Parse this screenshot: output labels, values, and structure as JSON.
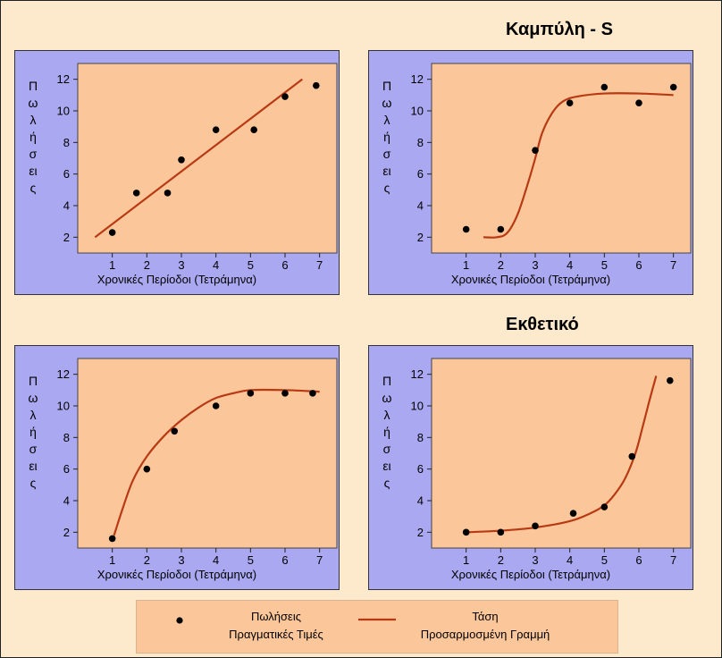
{
  "headings": {
    "s_curve": "Καμπύλη - S",
    "exponential": "Εκθετικό"
  },
  "colors": {
    "panel_bg": "#aaa8f0",
    "plot_bg": "#fbc79a",
    "trend_line": "#b83a14",
    "points": "#000000",
    "page_bg": "#fde9cc"
  },
  "chart_data": [
    {
      "type": "scatter",
      "xlabel": "Χρονικές Περίοδοι (Τετράμηνα)",
      "ylabel": "Πωλήσεις",
      "xticks": [
        1,
        2,
        3,
        4,
        5,
        6,
        7
      ],
      "yticks": [
        2,
        4,
        6,
        8,
        10,
        12
      ],
      "xlim": [
        0,
        7.5
      ],
      "ylim": [
        1,
        13
      ],
      "points": [
        [
          1.0,
          2.3
        ],
        [
          1.7,
          4.8
        ],
        [
          2.6,
          4.8
        ],
        [
          3.0,
          6.9
        ],
        [
          4.0,
          8.8
        ],
        [
          5.1,
          8.8
        ],
        [
          6.0,
          10.9
        ],
        [
          6.9,
          11.6
        ]
      ],
      "trend": [
        [
          0.5,
          2.0
        ],
        [
          6.5,
          12.0
        ]
      ],
      "trend_style": "linear"
    },
    {
      "type": "scatter",
      "xlabel": "Χρονικές Περίοδοι (Τετράμηνα)",
      "ylabel": "Πωλήσεις",
      "xticks": [
        1,
        2,
        3,
        4,
        5,
        6,
        7
      ],
      "yticks": [
        2,
        4,
        6,
        8,
        10,
        12
      ],
      "xlim": [
        0,
        7.5
      ],
      "ylim": [
        1,
        13
      ],
      "points": [
        [
          1.0,
          2.5
        ],
        [
          2.0,
          2.5
        ],
        [
          3.0,
          7.5
        ],
        [
          4.0,
          10.5
        ],
        [
          5.0,
          11.5
        ],
        [
          6.0,
          10.5
        ],
        [
          7.0,
          11.5
        ]
      ],
      "trend": [
        [
          1.5,
          2.0
        ],
        [
          1.9,
          2.0
        ],
        [
          2.2,
          2.3
        ],
        [
          2.5,
          3.5
        ],
        [
          2.8,
          5.5
        ],
        [
          3.0,
          7.0
        ],
        [
          3.2,
          8.6
        ],
        [
          3.5,
          9.9
        ],
        [
          3.8,
          10.6
        ],
        [
          4.2,
          10.9
        ],
        [
          5.0,
          11.1
        ],
        [
          6.0,
          11.1
        ],
        [
          7.0,
          11.0
        ]
      ],
      "trend_style": "s-curve"
    },
    {
      "type": "scatter",
      "xlabel": "Χρονικές Περίοδοι (Τετράμηνα)",
      "ylabel": "Πωλήσεις",
      "xticks": [
        1,
        2,
        3,
        4,
        5,
        6,
        7
      ],
      "yticks": [
        2,
        4,
        6,
        8,
        10,
        12
      ],
      "xlim": [
        0,
        7.5
      ],
      "ylim": [
        1,
        13
      ],
      "points": [
        [
          1.0,
          1.6
        ],
        [
          2.0,
          6.0
        ],
        [
          2.8,
          8.4
        ],
        [
          4.0,
          10.0
        ],
        [
          5.0,
          10.8
        ],
        [
          6.0,
          10.8
        ],
        [
          6.8,
          10.8
        ]
      ],
      "trend": [
        [
          1.05,
          1.8
        ],
        [
          1.3,
          3.5
        ],
        [
          1.6,
          5.3
        ],
        [
          2.0,
          6.8
        ],
        [
          2.5,
          8.1
        ],
        [
          3.0,
          9.1
        ],
        [
          3.5,
          9.9
        ],
        [
          4.0,
          10.5
        ],
        [
          4.5,
          10.8
        ],
        [
          5.0,
          11.0
        ],
        [
          6.0,
          11.0
        ],
        [
          7.0,
          10.9
        ]
      ],
      "trend_style": "logarithmic"
    },
    {
      "type": "scatter",
      "xlabel": "Χρονικές Περίοδοι (Τετράμηνα)",
      "ylabel": "Πωλήσεις",
      "xticks": [
        1,
        2,
        3,
        4,
        5,
        6,
        7
      ],
      "yticks": [
        2,
        4,
        6,
        8,
        10,
        12
      ],
      "xlim": [
        0,
        7.5
      ],
      "ylim": [
        1,
        13
      ],
      "points": [
        [
          1.0,
          2.0
        ],
        [
          2.0,
          2.0
        ],
        [
          3.0,
          2.4
        ],
        [
          4.1,
          3.2
        ],
        [
          5.0,
          3.6
        ],
        [
          5.8,
          6.8
        ],
        [
          6.9,
          11.6
        ]
      ],
      "trend": [
        [
          1.0,
          2.0
        ],
        [
          2.0,
          2.1
        ],
        [
          3.0,
          2.3
        ],
        [
          4.0,
          2.7
        ],
        [
          4.6,
          3.2
        ],
        [
          5.0,
          3.7
        ],
        [
          5.3,
          4.4
        ],
        [
          5.6,
          5.4
        ],
        [
          5.9,
          7.0
        ],
        [
          6.1,
          8.6
        ],
        [
          6.3,
          10.3
        ],
        [
          6.5,
          11.9
        ]
      ],
      "trend_style": "exponential"
    }
  ],
  "legend": {
    "points_line1": "Πωλήσεις",
    "points_line2": "Πραγματικές Τιμές",
    "line_line1": "Τάση",
    "line_line2": "Προσαρμοσμένη Γραμμή"
  }
}
